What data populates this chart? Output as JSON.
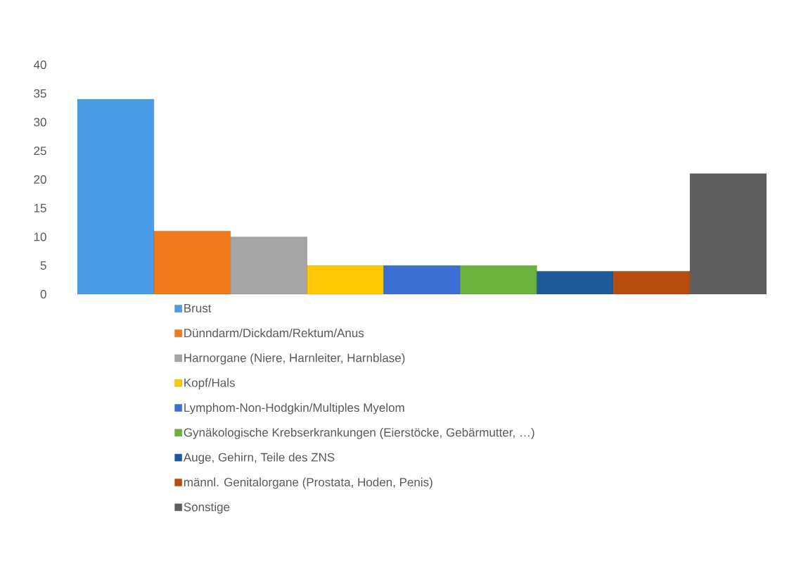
{
  "chart_data": {
    "type": "bar",
    "categories": [
      null
    ],
    "series": [
      {
        "name": "Brust",
        "color": "#4a9de6",
        "values": [
          34
        ]
      },
      {
        "name": "Dünndarm/Dickdam/Rektum/Anus",
        "color": "#f07a1a",
        "values": [
          11
        ]
      },
      {
        "name": "Harnorgane (Niere, Harnleiter, Harnblase)",
        "color": "#a5a5a5",
        "values": [
          10
        ]
      },
      {
        "name": "Kopf/Hals",
        "color": "#ffc800",
        "values": [
          5
        ]
      },
      {
        "name": "Lymphom-Non-Hodgkin/Multiples Myelom",
        "color": "#3b6fd4",
        "values": [
          5
        ]
      },
      {
        "name": "Gynäkologische Krebserkrankungen (Eierstöcke, Gebärmutter, …)",
        "color": "#6ab23c",
        "values": [
          5
        ]
      },
      {
        "name": "Auge, Gehirn, Teile des ZNS",
        "color": "#1e5a9a",
        "values": [
          4
        ]
      },
      {
        "name": "männl. Genitalorgane (Prostata, Hoden, Penis)",
        "color": "#b84c0e",
        "values": [
          4
        ]
      },
      {
        "name": "Sonstige",
        "color": "#5f5f5f",
        "values": [
          21
        ]
      }
    ],
    "ylim": [
      0,
      40
    ],
    "yticks": [
      0,
      5,
      10,
      15,
      20,
      25,
      30,
      35,
      40
    ],
    "grid": false,
    "legend": "bottom"
  }
}
